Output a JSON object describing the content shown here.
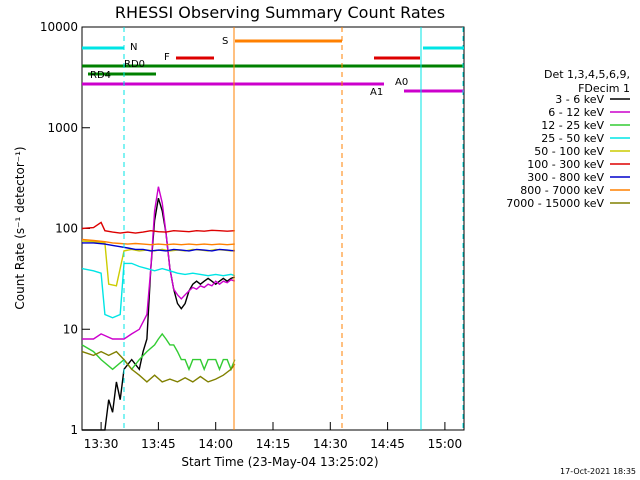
{
  "chart_data": {
    "type": "line",
    "title": "RHESSI Observing Summary Count Rates",
    "xlabel": "Start Time (23-May-04 13:25:02)",
    "ylabel": "Count Rate (s⁻¹ detector⁻¹)",
    "yscale": "log",
    "ylim": [
      1,
      10000
    ],
    "xlim_minutes": [
      25.0,
      65.0
    ],
    "x_ticks": [
      {
        "t": 30,
        "label": "13:30"
      },
      {
        "t": 45,
        "label": "13:45"
      },
      {
        "t": 60,
        "label": "14:00"
      },
      {
        "t": 75,
        "label": "14:15"
      },
      {
        "t": 90,
        "label": "14:30"
      },
      {
        "t": 105,
        "label": "14:45"
      },
      {
        "t": 120,
        "label": "15:00"
      }
    ],
    "y_ticks": [
      {
        "v": 1,
        "label": "1"
      },
      {
        "v": 10,
        "label": "10"
      },
      {
        "v": 100,
        "label": "100"
      },
      {
        "v": 1000,
        "label": "1000"
      },
      {
        "v": 10000,
        "label": "10000"
      }
    ],
    "legend_header": [
      "Det 1,3,4,5,6,9,",
      "FDecim 1"
    ],
    "legend_position": "right",
    "footer_date": "17-Oct-2021 18:35",
    "series": [
      {
        "name": "3 - 6 keV",
        "color": "#000000",
        "points": [
          [
            25,
            1
          ],
          [
            31,
            1
          ],
          [
            32,
            2
          ],
          [
            33,
            1.5
          ],
          [
            34,
            3
          ],
          [
            35,
            2
          ],
          [
            36,
            4
          ],
          [
            38,
            5
          ],
          [
            40,
            4
          ],
          [
            41,
            6
          ],
          [
            42,
            8
          ],
          [
            43,
            40
          ],
          [
            44,
            120
          ],
          [
            45,
            200
          ],
          [
            46,
            150
          ],
          [
            47,
            90
          ],
          [
            48,
            40
          ],
          [
            49,
            25
          ],
          [
            50,
            18
          ],
          [
            51,
            16
          ],
          [
            52,
            18
          ],
          [
            53,
            24
          ],
          [
            54,
            28
          ],
          [
            55,
            30
          ],
          [
            56,
            28
          ],
          [
            57,
            30
          ],
          [
            58,
            32
          ],
          [
            59,
            30
          ],
          [
            60,
            28
          ],
          [
            61,
            30
          ],
          [
            62,
            32
          ],
          [
            63,
            30
          ],
          [
            64,
            32
          ],
          [
            65,
            33
          ]
        ]
      },
      {
        "name": "6 - 12 keV",
        "color": "#cc00cc",
        "points": [
          [
            25,
            8
          ],
          [
            28,
            8
          ],
          [
            30,
            9
          ],
          [
            33,
            8
          ],
          [
            36,
            8
          ],
          [
            38,
            9
          ],
          [
            40,
            10
          ],
          [
            42,
            14
          ],
          [
            43,
            40
          ],
          [
            44,
            150
          ],
          [
            45,
            260
          ],
          [
            46,
            180
          ],
          [
            47,
            90
          ],
          [
            48,
            40
          ],
          [
            49,
            25
          ],
          [
            50,
            22
          ],
          [
            51,
            20
          ],
          [
            52,
            22
          ],
          [
            53,
            24
          ],
          [
            54,
            26
          ],
          [
            55,
            25
          ],
          [
            56,
            27
          ],
          [
            57,
            26
          ],
          [
            58,
            28
          ],
          [
            59,
            27
          ],
          [
            60,
            30
          ],
          [
            61,
            28
          ],
          [
            62,
            30
          ],
          [
            63,
            29
          ],
          [
            64,
            31
          ],
          [
            65,
            30
          ]
        ]
      },
      {
        "name": "12 - 25 keV",
        "color": "#33cc33",
        "points": [
          [
            25,
            7
          ],
          [
            28,
            6
          ],
          [
            30,
            5
          ],
          [
            33,
            4
          ],
          [
            36,
            5
          ],
          [
            38,
            4
          ],
          [
            40,
            5
          ],
          [
            42,
            6
          ],
          [
            44,
            7
          ],
          [
            45,
            8
          ],
          [
            46,
            9
          ],
          [
            47,
            8
          ],
          [
            48,
            7
          ],
          [
            49,
            7
          ],
          [
            50,
            6
          ],
          [
            51,
            5
          ],
          [
            52,
            5
          ],
          [
            53,
            4
          ],
          [
            54,
            5
          ],
          [
            55,
            5
          ],
          [
            56,
            5
          ],
          [
            57,
            4
          ],
          [
            58,
            5
          ],
          [
            59,
            5
          ],
          [
            60,
            5
          ],
          [
            61,
            4
          ],
          [
            62,
            5
          ],
          [
            63,
            5
          ],
          [
            64,
            4
          ],
          [
            65,
            5
          ]
        ]
      },
      {
        "name": "25 - 50 keV",
        "color": "#00e5e5",
        "points": [
          [
            25,
            40
          ],
          [
            28,
            38
          ],
          [
            30,
            36
          ],
          [
            31,
            14
          ],
          [
            33,
            13
          ],
          [
            35,
            14
          ],
          [
            36,
            45
          ],
          [
            38,
            45
          ],
          [
            40,
            42
          ],
          [
            42,
            40
          ],
          [
            44,
            38
          ],
          [
            46,
            40
          ],
          [
            48,
            38
          ],
          [
            50,
            36
          ],
          [
            52,
            35
          ],
          [
            54,
            36
          ],
          [
            56,
            35
          ],
          [
            58,
            34
          ],
          [
            60,
            35
          ],
          [
            62,
            34
          ],
          [
            64,
            35
          ],
          [
            65,
            34
          ]
        ]
      },
      {
        "name": "50 - 100 keV",
        "color": "#cccc00",
        "points": [
          [
            25,
            75
          ],
          [
            28,
            74
          ],
          [
            31,
            72
          ],
          [
            32,
            28
          ],
          [
            34,
            27
          ],
          [
            36,
            60
          ],
          [
            38,
            62
          ],
          [
            40,
            60
          ],
          [
            42,
            61
          ],
          [
            44,
            60
          ],
          [
            46,
            62
          ],
          [
            48,
            60
          ],
          [
            50,
            61
          ],
          [
            52,
            60
          ],
          [
            54,
            62
          ],
          [
            56,
            61
          ],
          [
            58,
            60
          ],
          [
            60,
            62
          ],
          [
            62,
            61
          ],
          [
            64,
            60
          ],
          [
            65,
            61
          ]
        ]
      },
      {
        "name": "100 - 300 keV",
        "color": "#dd0000",
        "points": [
          [
            25,
            100
          ],
          [
            28,
            102
          ],
          [
            30,
            115
          ],
          [
            31,
            95
          ],
          [
            33,
            92
          ],
          [
            35,
            90
          ],
          [
            37,
            92
          ],
          [
            39,
            90
          ],
          [
            41,
            92
          ],
          [
            43,
            95
          ],
          [
            45,
            93
          ],
          [
            47,
            92
          ],
          [
            49,
            95
          ],
          [
            51,
            94
          ],
          [
            53,
            93
          ],
          [
            55,
            95
          ],
          [
            57,
            94
          ],
          [
            59,
            96
          ],
          [
            61,
            95
          ],
          [
            63,
            94
          ],
          [
            65,
            95
          ]
        ]
      },
      {
        "name": "300 - 800 keV",
        "color": "#0000cc",
        "points": [
          [
            25,
            72
          ],
          [
            28,
            72
          ],
          [
            31,
            70
          ],
          [
            33,
            68
          ],
          [
            35,
            66
          ],
          [
            37,
            64
          ],
          [
            39,
            62
          ],
          [
            41,
            62
          ],
          [
            43,
            60
          ],
          [
            45,
            61
          ],
          [
            47,
            60
          ],
          [
            49,
            62
          ],
          [
            51,
            61
          ],
          [
            53,
            60
          ],
          [
            55,
            62
          ],
          [
            57,
            61
          ],
          [
            59,
            60
          ],
          [
            61,
            62
          ],
          [
            63,
            61
          ],
          [
            65,
            60
          ]
        ]
      },
      {
        "name": "800 - 7000 keV",
        "color": "#ff8000",
        "points": [
          [
            25,
            78
          ],
          [
            28,
            76
          ],
          [
            31,
            74
          ],
          [
            33,
            72
          ],
          [
            35,
            71
          ],
          [
            37,
            70
          ],
          [
            39,
            71
          ],
          [
            41,
            70
          ],
          [
            43,
            69
          ],
          [
            45,
            70
          ],
          [
            47,
            69
          ],
          [
            49,
            70
          ],
          [
            51,
            69
          ],
          [
            53,
            70
          ],
          [
            55,
            69
          ],
          [
            57,
            70
          ],
          [
            59,
            69
          ],
          [
            61,
            70
          ],
          [
            63,
            69
          ],
          [
            65,
            70
          ]
        ]
      },
      {
        "name": "7000 - 15000 keV",
        "color": "#808000",
        "points": [
          [
            25,
            6
          ],
          [
            28,
            5.5
          ],
          [
            30,
            6
          ],
          [
            32,
            5.5
          ],
          [
            34,
            6
          ],
          [
            36,
            5
          ],
          [
            38,
            4
          ],
          [
            40,
            3.5
          ],
          [
            42,
            3
          ],
          [
            44,
            3.5
          ],
          [
            46,
            3
          ],
          [
            48,
            3.2
          ],
          [
            50,
            3
          ],
          [
            52,
            3.3
          ],
          [
            54,
            3
          ],
          [
            56,
            3.4
          ],
          [
            58,
            3
          ],
          [
            60,
            3.2
          ],
          [
            62,
            3.5
          ],
          [
            64,
            4
          ],
          [
            65,
            4.5
          ]
        ]
      }
    ],
    "annotations": [
      "N",
      "RD0",
      "RD4",
      "F",
      "S",
      "A1",
      "A0"
    ]
  }
}
